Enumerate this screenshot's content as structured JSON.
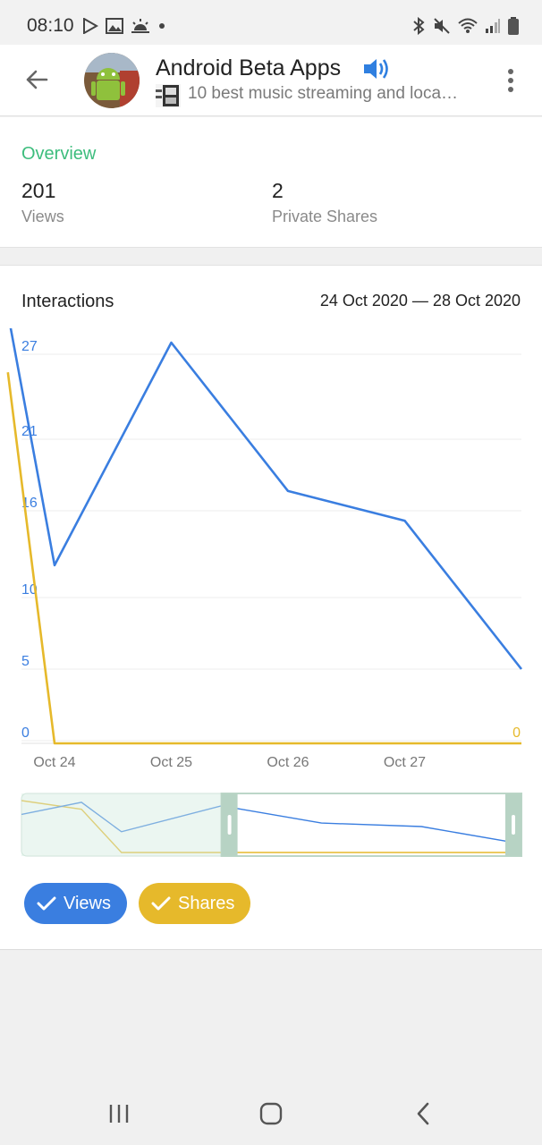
{
  "status_bar": {
    "time": "08:10",
    "left_icons": [
      "play-store-icon",
      "image-icon",
      "weather-icon",
      "dot-icon"
    ],
    "right_icons": [
      "bluetooth-icon",
      "mute-icon",
      "wifi-icon",
      "signal-icon",
      "battery-icon"
    ]
  },
  "header": {
    "title": "Android Beta Apps",
    "subtitle": "10 best music streaming and loca…"
  },
  "overview": {
    "title": "Overview",
    "views_value": "201",
    "views_label": "Views",
    "shares_value": "2",
    "shares_label": "Private Shares"
  },
  "interactions": {
    "title": "Interactions",
    "date_range": "24 Oct 2020 — 28 Oct 2020"
  },
  "toggles": {
    "views_label": "Views",
    "shares_label": "Shares"
  },
  "colors": {
    "views": "#3a7ee0",
    "shares": "#e6b92b",
    "accent_green": "#3dbd7d"
  },
  "chart_data": {
    "type": "line",
    "y_ticks_left": [
      "27",
      "21",
      "16",
      "10",
      "5",
      "0"
    ],
    "y_tick_right": "0",
    "x_tick_labels": [
      "Oct 24",
      "Oct 25",
      "Oct 26",
      "Oct 27"
    ],
    "ylim": [
      0,
      27
    ],
    "grid": true,
    "series": [
      {
        "name": "Views",
        "color": "#3a7ee0",
        "x": [
          23.6,
          24,
          25,
          26,
          27,
          28
        ],
        "values": [
          29,
          12,
          27,
          17,
          15,
          5
        ]
      },
      {
        "name": "Shares",
        "color": "#e6b92b",
        "x": [
          23.6,
          24,
          25,
          26,
          27,
          28
        ],
        "values": [
          25,
          0,
          0,
          0,
          0,
          0
        ]
      }
    ],
    "overview_selection": {
      "from": 25,
      "to": 28
    }
  }
}
